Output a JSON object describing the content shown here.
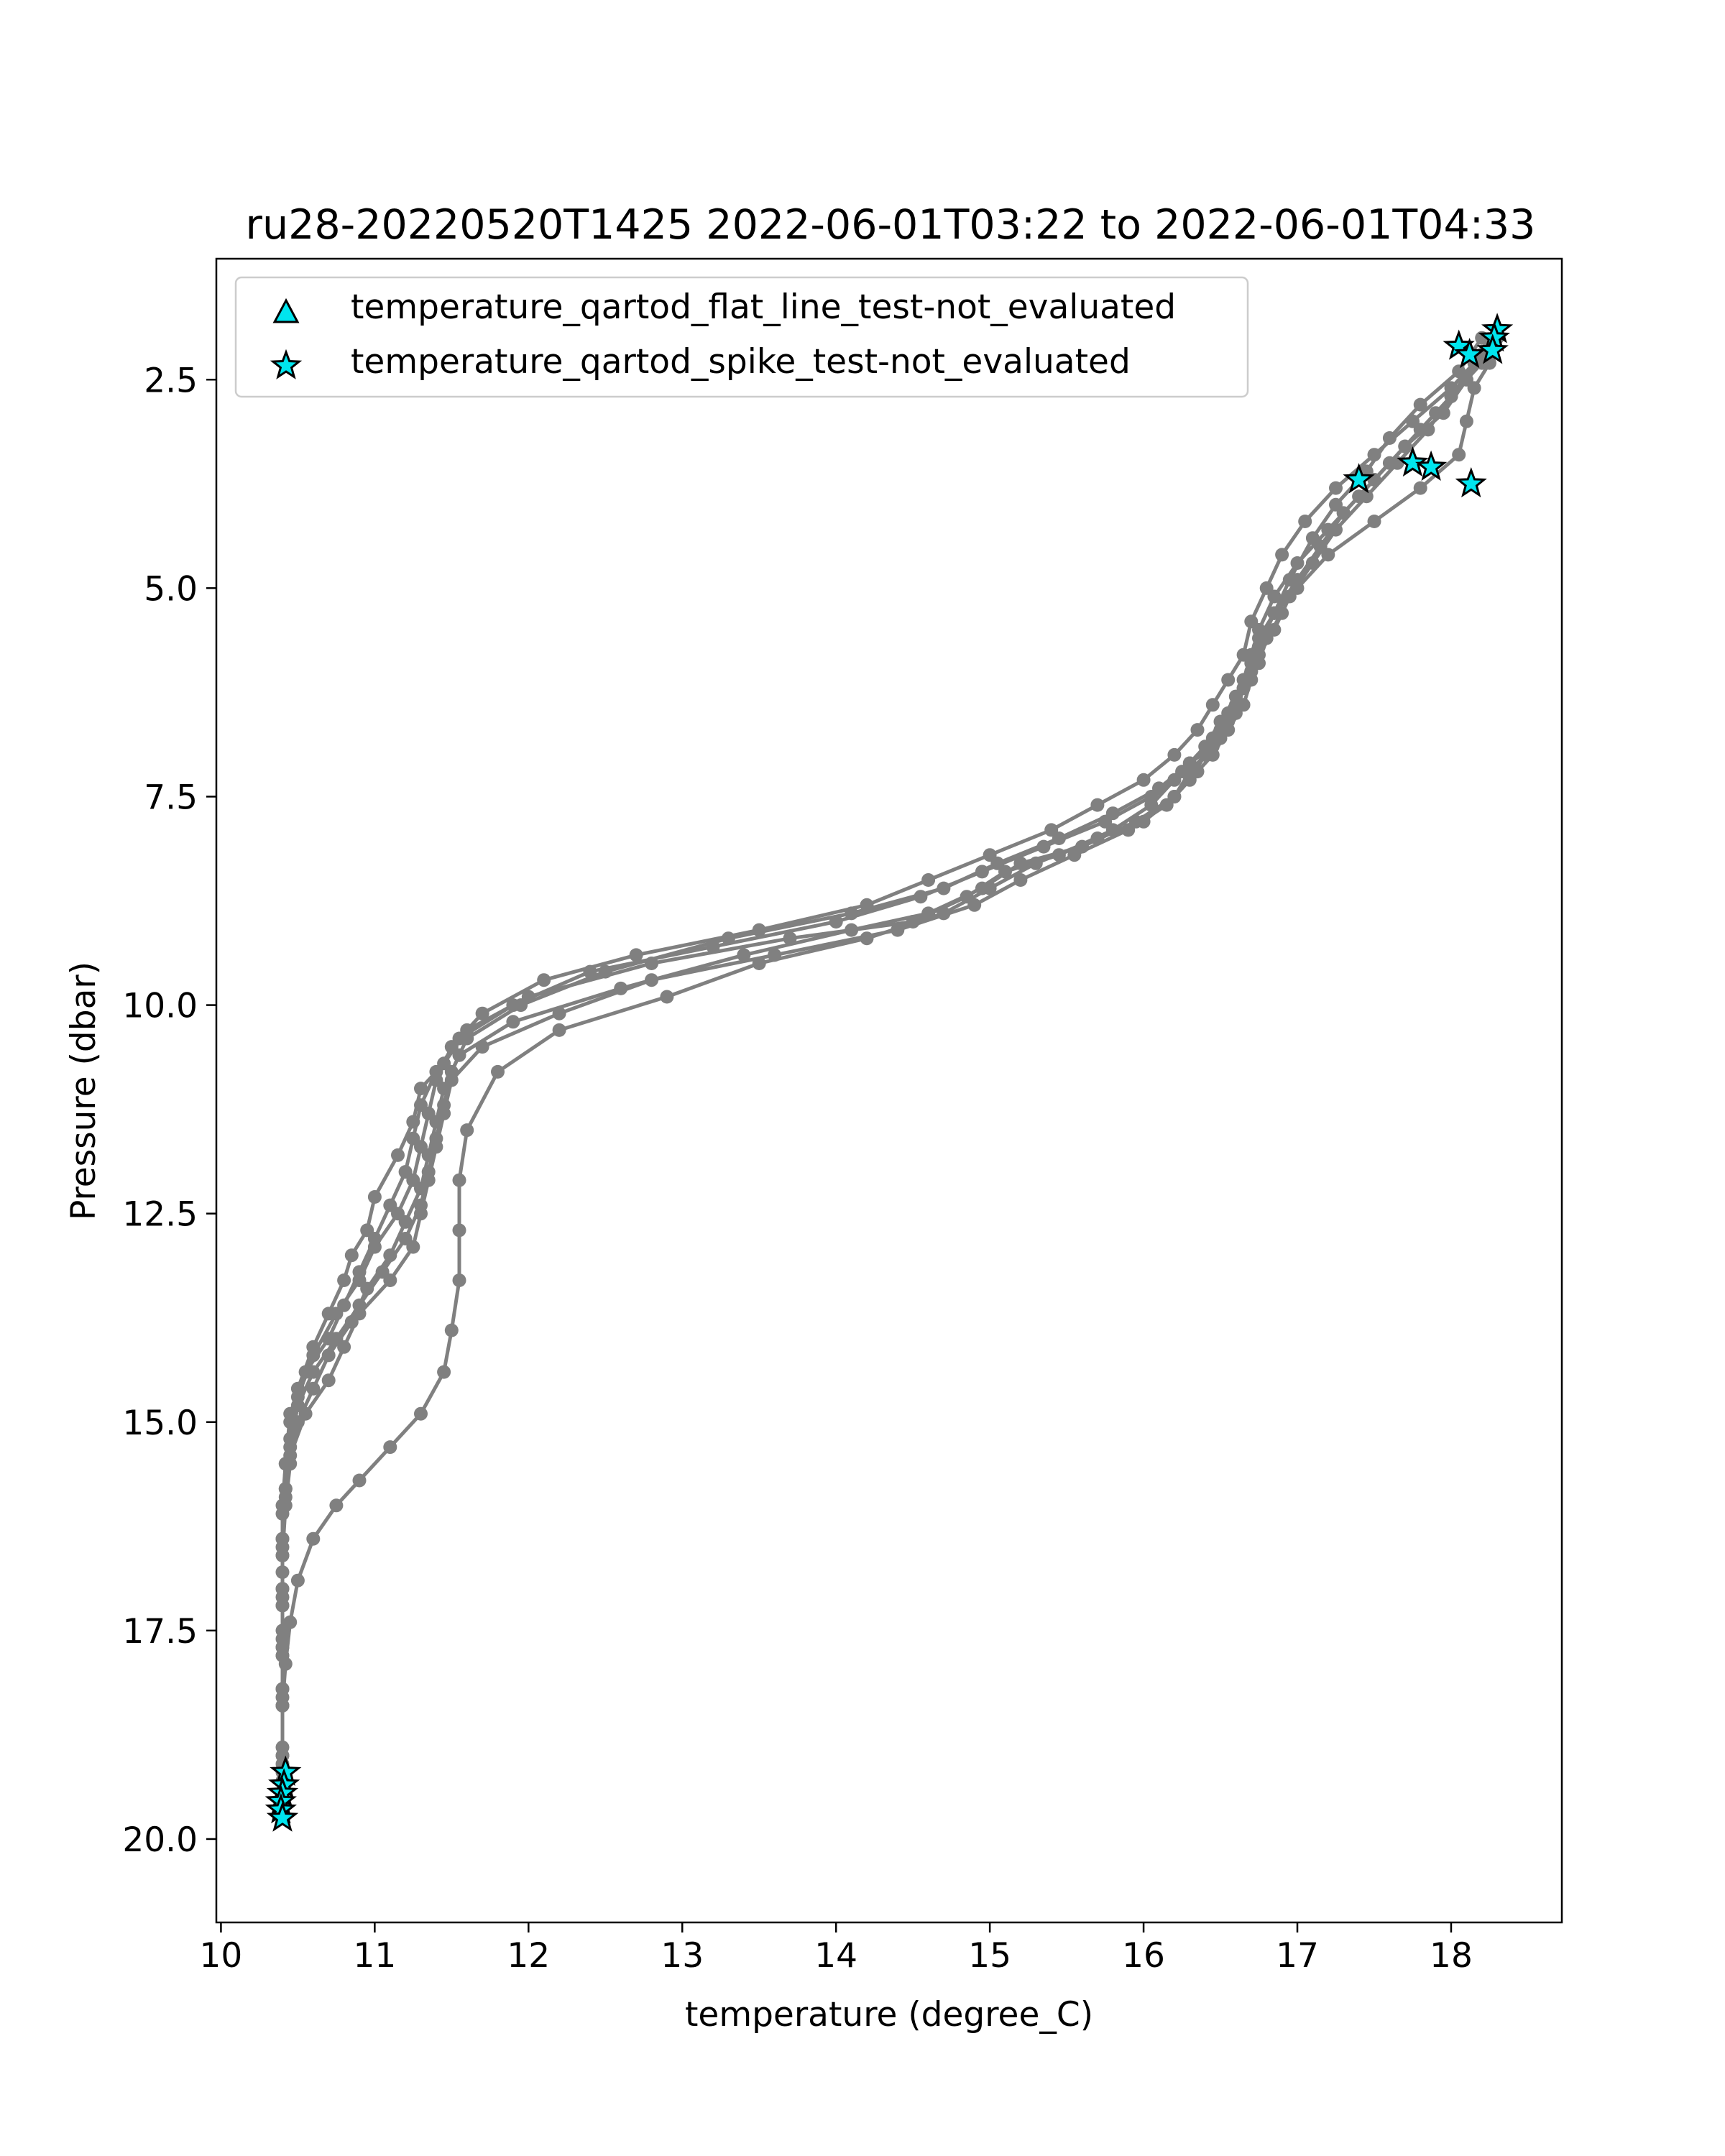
{
  "chart_data": {
    "type": "scatter",
    "title": "ru28-20220520T1425 2022-06-01T03:22 to 2022-06-01T04:33",
    "xlabel": "temperature (degree_C)",
    "ylabel": "Pressure (dbar)",
    "xlim": [
      9.97,
      18.72
    ],
    "ylim": [
      21.0,
      1.05
    ],
    "y_inverted": true,
    "xticks": [
      10,
      11,
      12,
      13,
      14,
      15,
      16,
      17,
      18
    ],
    "yticks": [
      2.5,
      5.0,
      7.5,
      10.0,
      12.5,
      15.0,
      17.5,
      20.0
    ],
    "xtick_labels": [
      "10",
      "11",
      "12",
      "13",
      "14",
      "15",
      "16",
      "17",
      "18"
    ],
    "ytick_labels": [
      "2.5",
      "5.0",
      "7.5",
      "10.0",
      "12.5",
      "15.0",
      "17.5",
      "20.0"
    ],
    "grid": false,
    "legend_position": "upper-left",
    "profile_color": "#808080",
    "marker_color": "#00e5ee",
    "legend": [
      {
        "label": "temperature_qartod_flat_line_test-not_evaluated",
        "marker": "triangle"
      },
      {
        "label": "temperature_qartod_spike_test-not_evaluated",
        "marker": "star"
      }
    ],
    "series": [
      {
        "x": [
          18.2,
          18.05,
          17.8,
          17.6,
          17.45,
          17.25,
          17.1,
          16.95,
          16.85,
          16.75,
          16.7,
          16.6,
          16.55,
          16.45,
          16.3,
          16.2,
          16.05,
          15.8,
          15.45,
          15.1,
          14.85,
          14.5,
          13.7,
          12.8,
          12.0,
          11.6,
          11.45,
          11.3,
          11.25,
          11.15,
          11.0,
          10.95,
          10.85,
          10.8,
          10.7,
          10.6,
          10.5,
          10.45,
          10.42,
          10.4,
          10.4,
          10.4,
          10.4,
          10.4,
          10.4,
          10.4
        ],
        "y": [
          2.0,
          2.4,
          2.8,
          3.2,
          3.6,
          4.0,
          4.4,
          4.9,
          5.3,
          5.7,
          6.0,
          6.3,
          6.6,
          6.9,
          7.1,
          7.3,
          7.6,
          7.9,
          8.2,
          8.4,
          8.7,
          9.0,
          9.2,
          9.5,
          9.9,
          10.3,
          10.7,
          11.0,
          11.4,
          11.8,
          12.3,
          12.7,
          13.0,
          13.3,
          13.7,
          14.1,
          14.6,
          15.0,
          15.5,
          16.0,
          16.6,
          17.2,
          17.8,
          18.4,
          19.0,
          19.5
        ]
      },
      {
        "x": [
          18.25,
          18.1,
          17.95,
          17.7,
          17.5,
          17.3,
          17.15,
          17.0,
          16.9,
          16.8,
          16.75,
          16.65,
          16.6,
          16.5,
          16.4,
          16.3,
          16.2,
          15.95,
          15.6,
          15.2,
          14.95,
          14.6,
          14.1,
          13.4,
          12.6,
          11.9,
          11.55,
          11.45,
          11.4,
          11.35,
          11.3,
          11.2,
          11.1,
          10.95,
          10.85,
          10.7,
          10.6,
          10.5,
          10.45,
          10.42,
          10.4,
          10.4,
          10.4,
          10.4,
          10.4
        ],
        "y": [
          2.1,
          2.5,
          2.9,
          3.3,
          3.7,
          4.1,
          4.5,
          4.9,
          5.3,
          5.6,
          5.9,
          6.2,
          6.5,
          6.8,
          7.0,
          7.2,
          7.5,
          7.8,
          8.1,
          8.3,
          8.6,
          8.9,
          9.1,
          9.4,
          9.8,
          10.2,
          10.6,
          11.0,
          11.4,
          11.8,
          12.2,
          12.6,
          13.0,
          13.4,
          13.8,
          14.2,
          14.6,
          15.0,
          15.5,
          16.0,
          16.6,
          17.2,
          17.8,
          18.4,
          19.1
        ]
      },
      {
        "x": [
          18.3,
          18.15,
          18.0,
          17.85,
          17.65,
          17.45,
          17.25,
          17.1,
          16.95,
          16.85,
          16.75,
          16.7,
          16.65,
          16.55,
          16.45,
          16.35,
          16.2,
          16.0,
          15.7,
          15.3,
          15.0,
          14.7,
          14.2,
          13.5,
          12.9,
          12.2,
          11.8,
          11.6,
          11.55,
          11.55,
          11.55,
          11.5,
          11.45,
          11.3,
          11.1,
          10.9,
          10.75,
          10.6,
          10.5,
          10.45,
          10.42,
          10.4,
          10.4,
          10.4,
          10.4
        ],
        "y": [
          1.9,
          2.3,
          2.7,
          3.1,
          3.5,
          3.9,
          4.3,
          4.7,
          5.1,
          5.5,
          5.8,
          6.1,
          6.4,
          6.7,
          7.0,
          7.2,
          7.5,
          7.8,
          8.0,
          8.3,
          8.6,
          8.9,
          9.2,
          9.5,
          9.9,
          10.3,
          10.8,
          11.5,
          12.1,
          12.7,
          13.3,
          13.9,
          14.4,
          14.9,
          15.3,
          15.7,
          16.0,
          16.4,
          16.9,
          17.4,
          17.9,
          18.4,
          18.9,
          19.3,
          19.6
        ]
      },
      {
        "x": [
          18.2,
          18.0,
          17.8,
          17.6,
          17.4,
          17.2,
          17.0,
          16.85,
          16.75,
          16.7,
          16.65,
          16.6,
          16.5,
          16.4,
          16.3,
          16.15,
          15.9,
          15.55,
          15.2,
          14.9,
          14.4,
          13.6,
          12.8,
          12.2,
          11.7,
          11.5,
          11.45,
          11.4,
          11.35,
          11.3,
          11.25,
          11.1,
          10.9,
          10.8,
          10.7,
          10.55,
          10.45,
          10.42,
          10.4,
          10.4,
          10.4,
          10.4,
          10.4
        ],
        "y": [
          2.3,
          2.7,
          3.1,
          3.5,
          3.9,
          4.3,
          4.7,
          5.1,
          5.5,
          5.8,
          6.1,
          6.4,
          6.7,
          7.0,
          7.3,
          7.6,
          7.9,
          8.2,
          8.5,
          8.8,
          9.1,
          9.4,
          9.7,
          10.1,
          10.5,
          10.9,
          11.3,
          11.7,
          12.1,
          12.5,
          12.9,
          13.3,
          13.7,
          14.1,
          14.5,
          14.9,
          15.4,
          15.9,
          16.5,
          17.1,
          17.7,
          18.3,
          19.0
        ]
      },
      {
        "x": [
          18.1,
          17.9,
          17.7,
          17.5,
          17.3,
          17.15,
          17.0,
          16.85,
          16.75,
          16.7,
          16.6,
          16.5,
          16.4,
          16.25,
          16.05,
          15.75,
          15.35,
          14.95,
          14.55,
          14.0,
          13.2,
          12.4,
          11.9,
          11.55,
          11.4,
          11.3,
          11.25,
          11.2,
          11.1,
          11.0,
          10.9,
          10.8,
          10.7,
          10.55,
          10.45,
          10.42,
          10.4,
          10.4,
          10.4,
          10.4
        ],
        "y": [
          2.5,
          2.9,
          3.3,
          3.7,
          4.1,
          4.5,
          4.9,
          5.3,
          5.7,
          6.0,
          6.3,
          6.6,
          6.9,
          7.2,
          7.5,
          7.8,
          8.1,
          8.4,
          8.7,
          9.0,
          9.3,
          9.6,
          10.0,
          10.4,
          10.8,
          11.2,
          11.6,
          12.0,
          12.4,
          12.8,
          13.2,
          13.6,
          14.0,
          14.4,
          14.9,
          15.5,
          16.1,
          16.8,
          17.5,
          18.2
        ]
      },
      {
        "x": [
          18.2,
          18.0,
          17.75,
          17.5,
          17.25,
          17.05,
          16.9,
          16.8,
          16.7,
          16.65,
          16.55,
          16.45,
          16.35,
          16.2,
          16.0,
          15.7,
          15.4,
          15.0,
          14.6,
          14.2,
          13.5,
          12.7,
          12.1,
          11.7,
          11.5,
          11.4,
          11.35,
          11.3,
          11.25,
          11.15,
          11.0,
          10.9,
          10.75,
          10.6,
          10.5,
          10.45,
          10.42,
          10.4,
          10.4,
          10.4,
          10.4
        ],
        "y": [
          2.2,
          2.6,
          3.0,
          3.4,
          3.8,
          4.2,
          4.6,
          5.0,
          5.4,
          5.8,
          6.1,
          6.4,
          6.7,
          7.0,
          7.3,
          7.6,
          7.9,
          8.2,
          8.5,
          8.8,
          9.1,
          9.4,
          9.7,
          10.1,
          10.5,
          10.9,
          11.3,
          11.7,
          12.1,
          12.5,
          12.9,
          13.3,
          13.7,
          14.2,
          14.7,
          15.2,
          15.8,
          16.4,
          17.0,
          17.6,
          18.2
        ]
      },
      {
        "x": [
          18.3,
          18.25,
          18.15,
          18.1,
          18.05,
          17.8,
          17.5,
          17.2,
          17.0,
          16.85,
          16.75,
          16.7,
          16.65,
          16.55,
          16.45,
          16.3,
          16.1,
          15.8,
          15.45,
          15.05,
          14.7,
          14.1,
          13.3,
          12.5,
          11.95,
          11.6,
          11.5,
          11.45,
          11.4,
          11.35,
          11.3,
          11.2,
          11.05,
          10.9,
          10.75,
          10.6,
          10.5,
          10.45,
          10.42,
          10.4,
          10.4,
          10.4,
          10.4,
          10.4
        ],
        "y": [
          2.0,
          2.3,
          2.6,
          3.0,
          3.4,
          3.8,
          4.2,
          4.6,
          5.0,
          5.3,
          5.6,
          5.9,
          6.2,
          6.5,
          6.8,
          7.1,
          7.4,
          7.7,
          8.0,
          8.3,
          8.6,
          8.9,
          9.2,
          9.6,
          10.0,
          10.4,
          10.8,
          11.2,
          11.6,
          12.0,
          12.4,
          12.8,
          13.2,
          13.6,
          14.0,
          14.4,
          14.8,
          15.3,
          15.8,
          16.4,
          17.0,
          17.7,
          18.4,
          19.2
        ]
      }
    ],
    "flagged_points": [
      {
        "x": 18.3,
        "y": 1.9
      },
      {
        "x": 18.28,
        "y": 2.0
      },
      {
        "x": 18.05,
        "y": 2.1
      },
      {
        "x": 18.27,
        "y": 2.15
      },
      {
        "x": 18.12,
        "y": 2.2
      },
      {
        "x": 17.75,
        "y": 3.5
      },
      {
        "x": 17.87,
        "y": 3.55
      },
      {
        "x": 17.4,
        "y": 3.7
      },
      {
        "x": 18.13,
        "y": 3.75
      },
      {
        "x": 10.42,
        "y": 19.2
      },
      {
        "x": 10.41,
        "y": 19.35
      },
      {
        "x": 10.4,
        "y": 19.45
      },
      {
        "x": 10.39,
        "y": 19.55
      },
      {
        "x": 10.39,
        "y": 19.65
      },
      {
        "x": 10.4,
        "y": 19.75
      }
    ]
  }
}
